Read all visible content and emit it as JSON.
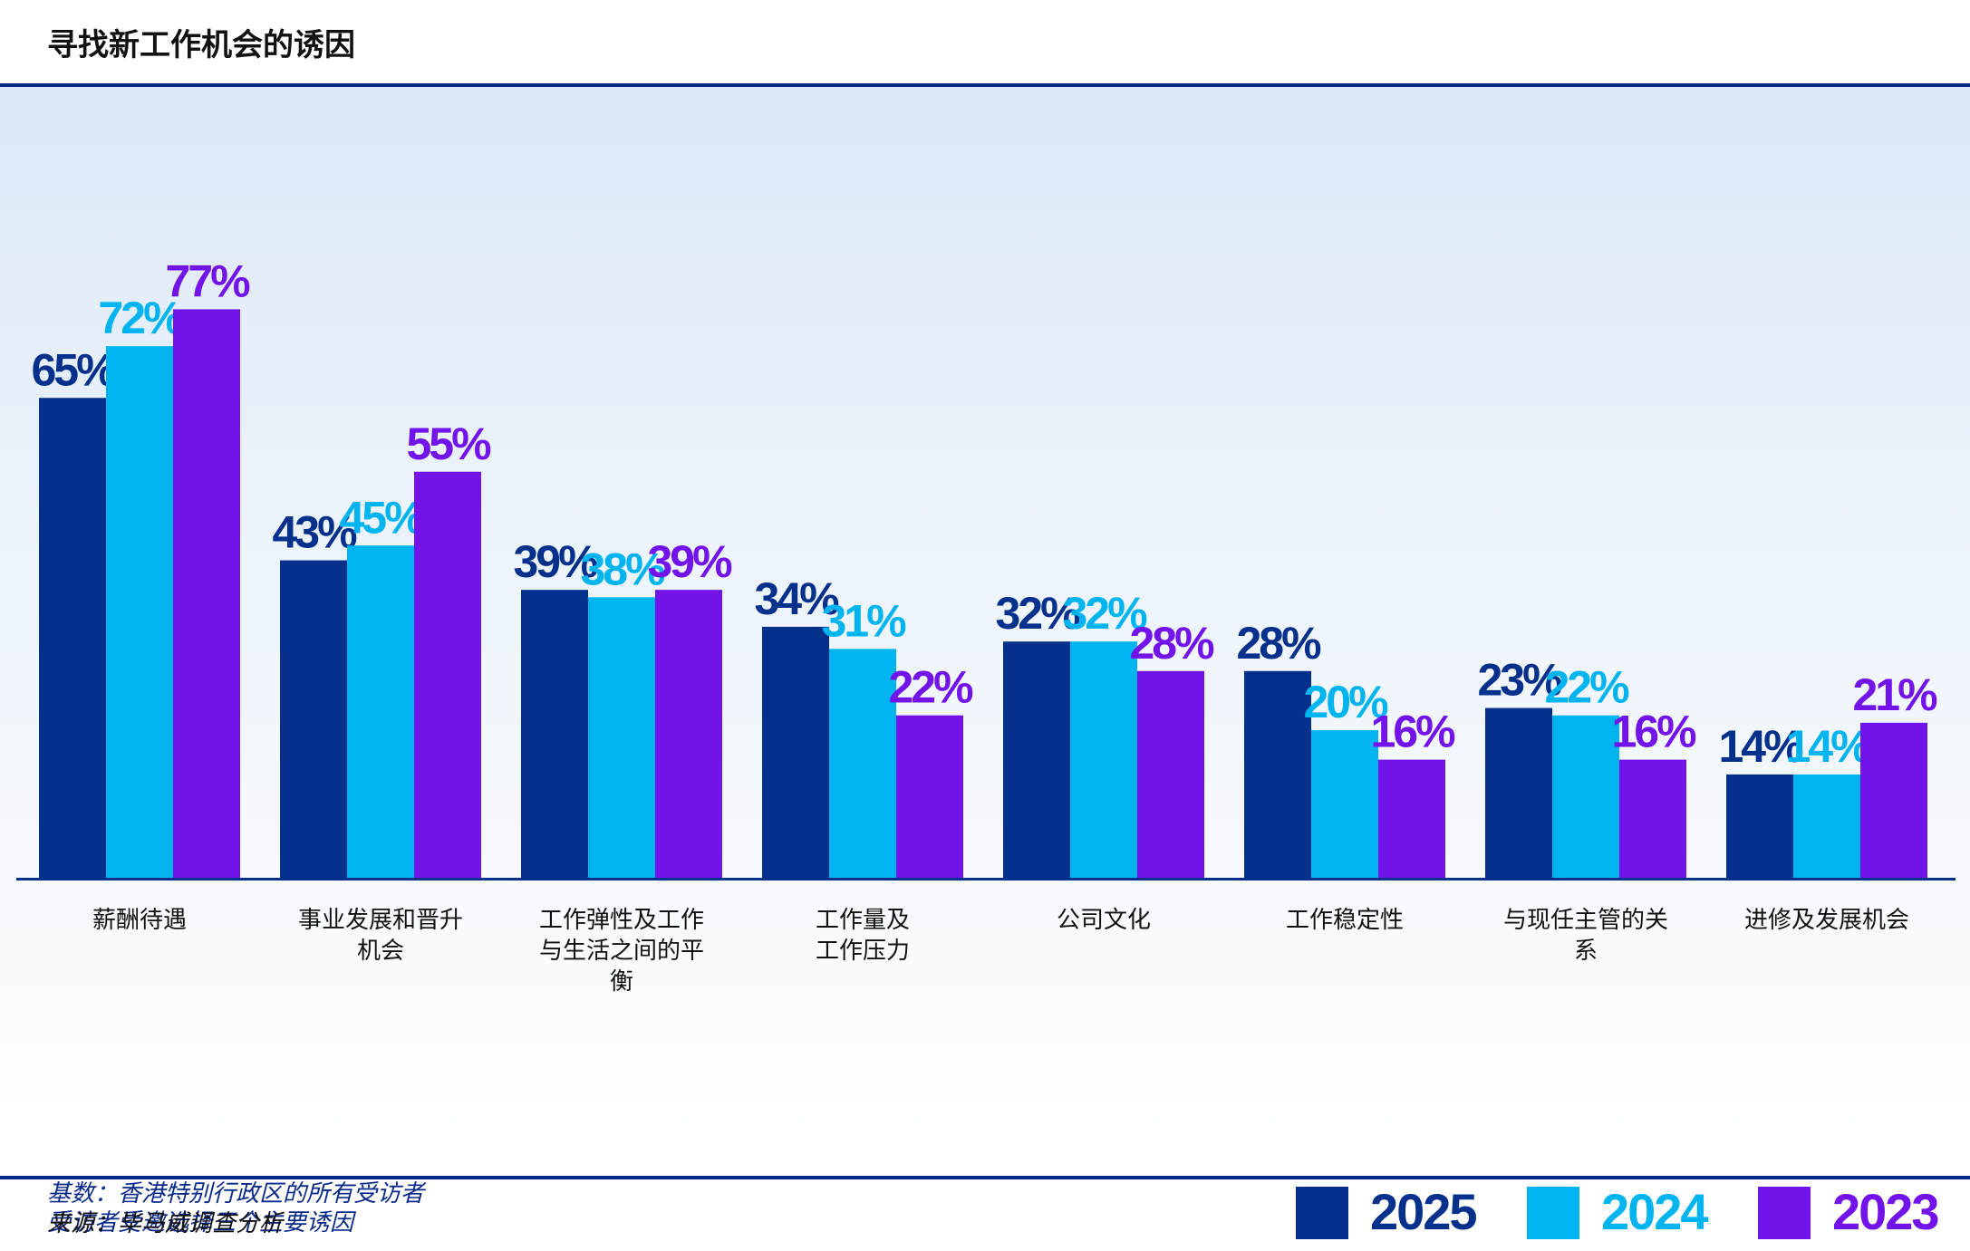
{
  "title": "寻找新工作机会的诱因",
  "notes": {
    "base": "基数：香港特别行政区的所有受访者",
    "instruction": "受访者受邀选择三个主要诱因"
  },
  "source": "来源：毕马威调查分析",
  "chart_data": {
    "type": "bar",
    "title": "寻找新工作机会的诱因",
    "categories": [
      "薪酬待遇",
      "事业发展和晋升机会",
      "工作弹性及工作与生活之间的平衡",
      "工作量及工作压力",
      "公司文化",
      "工作稳定性",
      "与现任主管的关系",
      "进修及发展机会"
    ],
    "category_lines": [
      [
        "薪酬待遇"
      ],
      [
        "事业发展和晋升",
        "机会"
      ],
      [
        "工作弹性及工作",
        "与生活之间的平",
        "衡"
      ],
      [
        "工作量及",
        "工作压力"
      ],
      [
        "公司文化"
      ],
      [
        "工作稳定性"
      ],
      [
        "与现任主管的关",
        "系"
      ],
      [
        "进修及发展机会"
      ]
    ],
    "series": [
      {
        "name": "2025",
        "color": "#05308c",
        "values": [
          65,
          43,
          39,
          34,
          32,
          28,
          23,
          14
        ]
      },
      {
        "name": "2024",
        "color": "#00b4f0",
        "values": [
          72,
          45,
          38,
          31,
          32,
          20,
          22,
          14
        ]
      },
      {
        "name": "2023",
        "color": "#7213ea",
        "values": [
          77,
          55,
          39,
          22,
          28,
          16,
          16,
          21
        ]
      }
    ],
    "value_suffix": "%",
    "ylim": [
      0,
      100
    ],
    "grid": false,
    "legend": "bottom-right",
    "xlabel": "",
    "ylabel": ""
  }
}
